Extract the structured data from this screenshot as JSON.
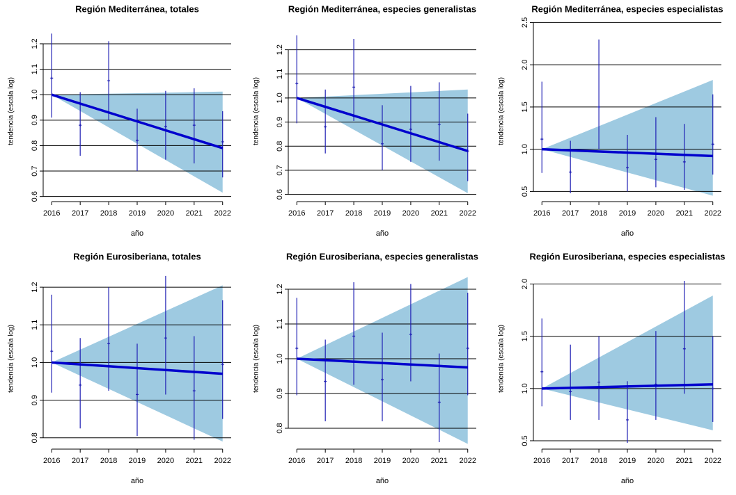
{
  "chart_data": [
    {
      "type": "trend",
      "title": "Región Mediterránea, totales",
      "xlabel": "año",
      "ylabel": "tendencia (escala log)",
      "x": [
        2016,
        2017,
        2018,
        2019,
        2020,
        2021,
        2022
      ],
      "xlim": [
        2015.7,
        2022.3
      ],
      "xticks": [
        2016,
        2017,
        2018,
        2019,
        2020,
        2021,
        2022
      ],
      "ylim": [
        0.58,
        1.29
      ],
      "yticks": [
        0.6,
        0.7,
        0.8,
        0.9,
        {
          "value": 1,
          "label": "1.0"
        },
        1.1,
        1.2
      ],
      "grid": true,
      "values": [
        1.065,
        0.88,
        1.055,
        0.82,
        0.875,
        0.88,
        0.815
      ],
      "lower": [
        0.91,
        0.76,
        0.9,
        0.7,
        0.745,
        0.73,
        0.675
      ],
      "upper": [
        1.24,
        1.01,
        1.21,
        0.945,
        1.015,
        1.025,
        0.935
      ],
      "trend": {
        "x": [
          2016,
          2022
        ],
        "values": [
          1,
          0.79
        ]
      },
      "band": {
        "x": [
          2016,
          2022
        ],
        "lower": [
          1,
          0.615
        ],
        "upper": [
          1,
          1.012
        ]
      },
      "band_color": "#9ecae1",
      "line_color": "#0000cd",
      "errorbar_color": "#1f1fb4"
    },
    {
      "type": "trend",
      "title": "Región Mediterránea, especies generalistas",
      "xlabel": "año",
      "ylabel": "tendencia (escala log)",
      "x": [
        2016,
        2017,
        2018,
        2019,
        2020,
        2021,
        2022
      ],
      "xlim": [
        2015.7,
        2022.3
      ],
      "xticks": [
        2016,
        2017,
        2018,
        2019,
        2020,
        2021,
        2022
      ],
      "ylim": [
        0.57,
        1.32
      ],
      "yticks": [
        0.6,
        0.7,
        0.8,
        0.9,
        {
          "value": 1,
          "label": "1.0"
        },
        1.1,
        1.2
      ],
      "grid": true,
      "values": [
        1.06,
        0.88,
        1.045,
        0.81,
        0.87,
        0.89,
        0.78
      ],
      "lower": [
        0.895,
        0.77,
        0.905,
        0.7,
        0.735,
        0.74,
        0.655
      ],
      "upper": [
        1.26,
        1.035,
        1.245,
        0.97,
        1.05,
        1.065,
        0.935
      ],
      "trend": {
        "x": [
          2016,
          2022
        ],
        "values": [
          1,
          0.78
        ]
      },
      "band": {
        "x": [
          2016,
          2022
        ],
        "lower": [
          1,
          0.605
        ],
        "upper": [
          1,
          1.035
        ]
      },
      "band_color": "#9ecae1",
      "line_color": "#0000cd",
      "errorbar_color": "#1f1fb4"
    },
    {
      "type": "trend",
      "title": "Región Mediterránea, especies especialistas",
      "xlabel": "año",
      "ylabel": "tendencia (escala log)",
      "x": [
        2016,
        2017,
        2018,
        2019,
        2020,
        2021,
        2022
      ],
      "xlim": [
        2015.7,
        2022.3
      ],
      "xticks": [
        2016,
        2017,
        2018,
        2019,
        2020,
        2021,
        2022
      ],
      "ylim": [
        0.38,
        2.52
      ],
      "yticks": [
        0.5,
        {
          "value": 1,
          "label": "1.0"
        },
        1.5,
        {
          "value": 2,
          "label": "2.0"
        },
        2.5
      ],
      "grid": true,
      "values": [
        1.12,
        0.73,
        1.5,
        0.78,
        0.88,
        0.85,
        1.06
      ],
      "lower": [
        0.72,
        0.48,
        1.0,
        0.5,
        0.55,
        0.52,
        0.7
      ],
      "upper": [
        1.8,
        1.1,
        2.3,
        1.17,
        1.38,
        1.3,
        1.65
      ],
      "trend": {
        "x": [
          2016,
          2022
        ],
        "values": [
          1,
          0.92
        ]
      },
      "band": {
        "x": [
          2016,
          2022
        ],
        "lower": [
          1,
          0.45
        ],
        "upper": [
          1,
          1.82
        ]
      },
      "band_color": "#9ecae1",
      "line_color": "#0000cd",
      "errorbar_color": "#1f1fb4"
    },
    {
      "type": "trend",
      "title": "Región Eurosiberiana, totales",
      "xlabel": "año",
      "ylabel": "tendencia (escala log)",
      "x": [
        2016,
        2017,
        2018,
        2019,
        2020,
        2021,
        2022
      ],
      "xlim": [
        2015.7,
        2022.3
      ],
      "xticks": [
        2016,
        2017,
        2018,
        2019,
        2020,
        2021,
        2022
      ],
      "ylim": [
        0.77,
        1.25
      ],
      "yticks": [
        0.8,
        0.9,
        {
          "value": 1,
          "label": "1.0"
        },
        1.1,
        1.2
      ],
      "grid": true,
      "values": [
        1.03,
        0.94,
        1.05,
        0.915,
        1.065,
        0.925,
        0.995
      ],
      "lower": [
        0.92,
        0.825,
        0.925,
        0.805,
        0.915,
        0.795,
        0.85
      ],
      "upper": [
        1.18,
        1.065,
        1.2,
        1.05,
        1.23,
        1.07,
        1.165
      ],
      "trend": {
        "x": [
          2016,
          2022
        ],
        "values": [
          1,
          0.97
        ]
      },
      "band": {
        "x": [
          2016,
          2022
        ],
        "lower": [
          1,
          0.79
        ],
        "upper": [
          1,
          1.205
        ]
      },
      "band_color": "#9ecae1",
      "line_color": "#0000cd",
      "errorbar_color": "#1f1fb4"
    },
    {
      "type": "trend",
      "title": "Región Eurosiberiana, especies generalistas",
      "xlabel": "año",
      "ylabel": "tendencia (escala log)",
      "x": [
        2016,
        2017,
        2018,
        2019,
        2020,
        2021,
        2022
      ],
      "xlim": [
        2015.7,
        2022.3
      ],
      "xticks": [
        2016,
        2017,
        2018,
        2019,
        2020,
        2021,
        2022
      ],
      "ylim": [
        0.74,
        1.26
      ],
      "yticks": [
        0.8,
        0.9,
        {
          "value": 1,
          "label": "1.0"
        },
        1.1,
        1.2
      ],
      "grid": true,
      "values": [
        1.03,
        0.935,
        1.065,
        0.94,
        1.07,
        0.875,
        1.03
      ],
      "lower": [
        0.895,
        0.82,
        0.925,
        0.82,
        0.935,
        0.76,
        0.895
      ],
      "upper": [
        1.175,
        1.055,
        1.22,
        1.075,
        1.215,
        1.015,
        1.19
      ],
      "trend": {
        "x": [
          2016,
          2022
        ],
        "values": [
          1,
          0.975
        ]
      },
      "band": {
        "x": [
          2016,
          2022
        ],
        "lower": [
          1,
          0.755
        ],
        "upper": [
          1,
          1.235
        ]
      },
      "band_color": "#9ecae1",
      "line_color": "#0000cd",
      "errorbar_color": "#1f1fb4"
    },
    {
      "type": "trend",
      "title": "Región Eurosiberiana, especies especialistas",
      "xlabel": "año",
      "ylabel": "tendencia (escala log)",
      "x": [
        2016,
        2017,
        2018,
        2019,
        2020,
        2021,
        2022
      ],
      "xlim": [
        2015.7,
        2022.3
      ],
      "xticks": [
        2016,
        2017,
        2018,
        2019,
        2020,
        2021,
        2022
      ],
      "ylim": [
        0.42,
        2.15
      ],
      "yticks": [
        0.5,
        {
          "value": 1,
          "label": "1.0"
        },
        1.5,
        {
          "value": 2,
          "label": "2.0"
        }
      ],
      "grid": true,
      "values": [
        1.16,
        0.97,
        1.06,
        0.7,
        1.04,
        1.38,
        1.0
      ],
      "lower": [
        0.83,
        0.7,
        0.7,
        0.48,
        0.7,
        0.95,
        0.68
      ],
      "upper": [
        1.67,
        1.42,
        1.5,
        1.07,
        1.55,
        2.03,
        1.5
      ],
      "trend": {
        "x": [
          2016,
          2022
        ],
        "values": [
          1,
          1.04
        ]
      },
      "band": {
        "x": [
          2016,
          2022
        ],
        "lower": [
          1,
          0.6
        ],
        "upper": [
          1,
          1.89
        ]
      },
      "band_color": "#9ecae1",
      "line_color": "#0000cd",
      "errorbar_color": "#1f1fb4"
    }
  ]
}
